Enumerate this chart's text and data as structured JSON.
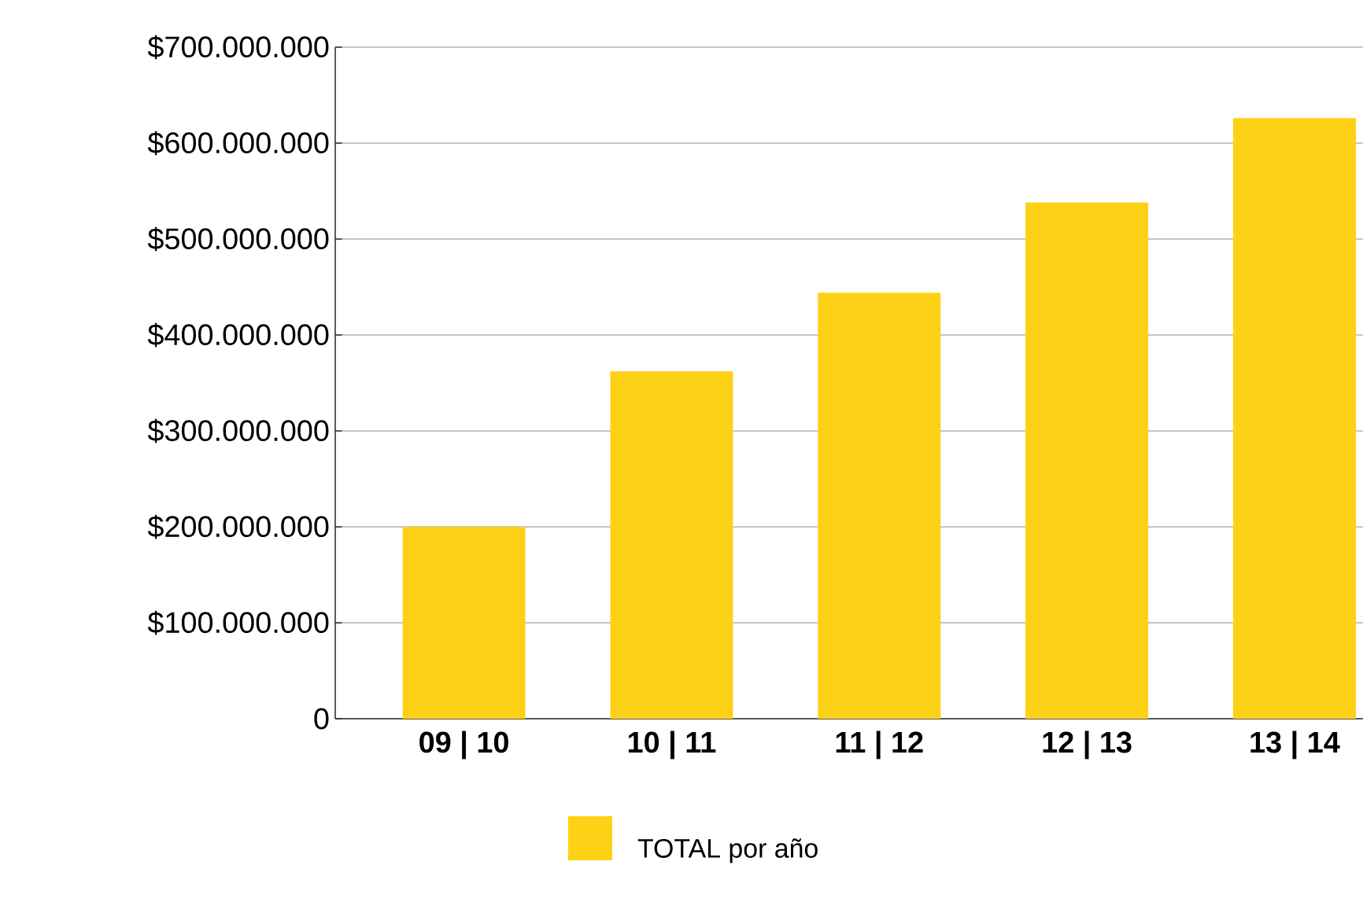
{
  "chart_data": {
    "type": "bar",
    "categories": [
      "09 | 10",
      "10 | 11",
      "11 | 12",
      "12 | 13",
      "13 | 14"
    ],
    "series": [
      {
        "name": "TOTAL por año",
        "color": "#fdd116",
        "values": [
          200000000,
          362000000,
          444000000,
          538000000,
          626000000
        ]
      }
    ],
    "ylim": [
      0,
      700000000
    ],
    "yticks": [
      {
        "value": 0,
        "label": "0"
      },
      {
        "value": 100000000,
        "label": "$100.000.000"
      },
      {
        "value": 200000000,
        "label": "$200.000.000"
      },
      {
        "value": 300000000,
        "label": "$300.000.000"
      },
      {
        "value": 400000000,
        "label": "$400.000.000"
      },
      {
        "value": 500000000,
        "label": "$500.000.000"
      },
      {
        "value": 600000000,
        "label": "$600.000.000"
      },
      {
        "value": 700000000,
        "label": "$700.000.000"
      }
    ],
    "grid": "y",
    "legend": "bottom"
  }
}
